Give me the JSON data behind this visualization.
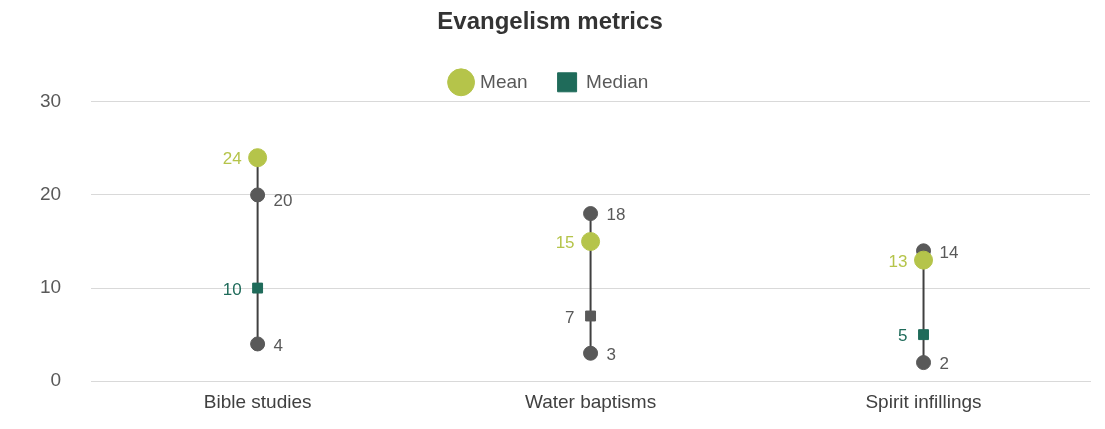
{
  "chart_data": {
    "type": "scatter",
    "title": "Evangelism metrics",
    "categories": [
      "Bible studies",
      "Water baptisms",
      "Spirit infillings"
    ],
    "series": [
      {
        "name": "Mean",
        "color": "#b5c44a",
        "values": [
          24,
          15,
          13
        ],
        "marker": "circle"
      },
      {
        "name": "Median",
        "color": "#1f6b5a",
        "colors": [
          "#1f6b5a",
          "#595959",
          "#1f6b5a"
        ],
        "values": [
          10,
          7,
          5
        ],
        "marker": "square"
      },
      {
        "color": "#595959",
        "values": [
          20,
          18,
          14
        ],
        "marker": "circle"
      },
      {
        "color": "#595959",
        "values": [
          4,
          3,
          2
        ],
        "marker": "circle"
      }
    ],
    "ylim": [
      0,
      30
    ],
    "yticks": [
      0,
      10,
      20,
      30
    ],
    "grid": "y",
    "legend": "top",
    "data_labels": true
  }
}
